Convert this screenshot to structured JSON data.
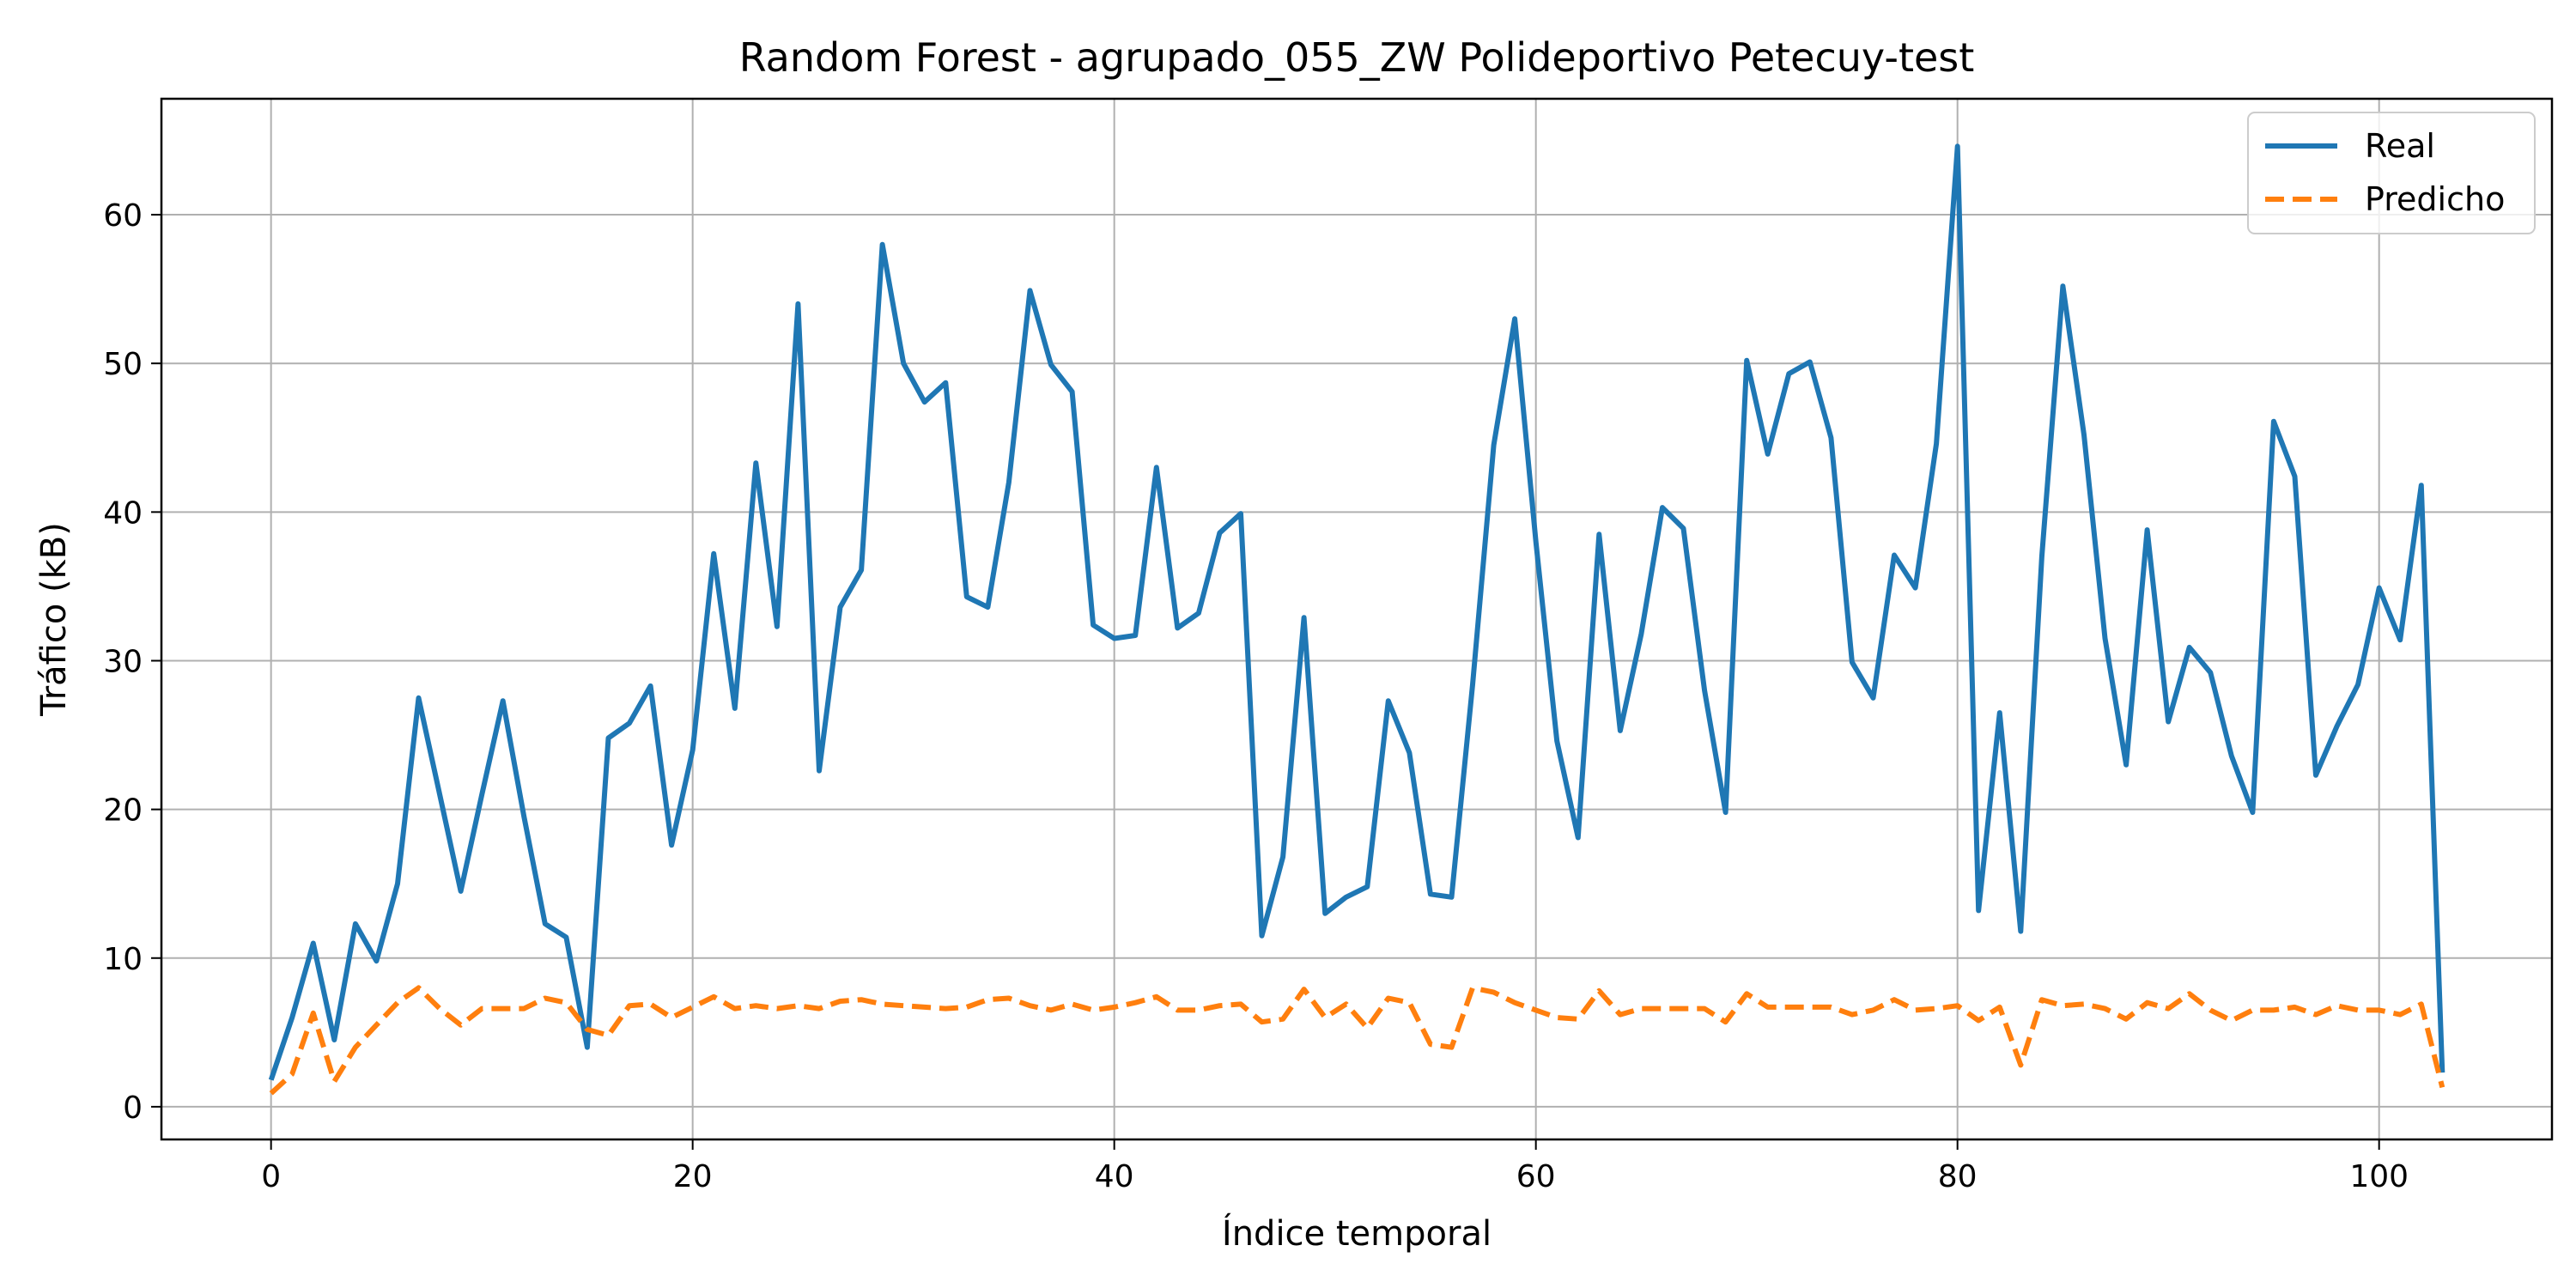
{
  "chart_data": {
    "type": "line",
    "title": "Random Forest - agrupado_055_ZW Polideportivo Petecuy-test",
    "xlabel": "Índice temporal",
    "ylabel": "Tráfico (kB)",
    "xlim": [
      -5.2,
      108.2
    ],
    "ylim": [
      -2.2,
      67.8
    ],
    "xticks": [
      0,
      20,
      40,
      60,
      80,
      100
    ],
    "yticks": [
      0,
      10,
      20,
      30,
      40,
      50,
      60
    ],
    "grid": true,
    "legend_position": "top-right",
    "colors": {
      "real": "#1f77b4",
      "predicho": "#ff7f0e",
      "grid": "#b0b0b0"
    },
    "x": [
      0,
      1,
      2,
      3,
      4,
      5,
      6,
      7,
      8,
      9,
      10,
      11,
      12,
      13,
      14,
      15,
      16,
      17,
      18,
      19,
      20,
      21,
      22,
      23,
      24,
      25,
      26,
      27,
      28,
      29,
      30,
      31,
      32,
      33,
      34,
      35,
      36,
      37,
      38,
      39,
      40,
      41,
      42,
      43,
      44,
      45,
      46,
      47,
      48,
      49,
      50,
      51,
      52,
      53,
      54,
      55,
      56,
      57,
      58,
      59,
      60,
      61,
      62,
      63,
      64,
      65,
      66,
      67,
      68,
      69,
      70,
      71,
      72,
      73,
      74,
      75,
      76,
      77,
      78,
      79,
      80,
      81,
      82,
      83,
      84,
      85,
      86,
      87,
      88,
      89,
      90,
      91,
      92,
      93,
      94,
      95,
      96,
      97,
      98,
      99,
      100,
      101,
      102,
      103
    ],
    "series": [
      {
        "name": "Real",
        "style": "solid",
        "values": [
          1.8,
          6.0,
          11.0,
          4.5,
          12.3,
          9.8,
          15.0,
          27.5,
          21.0,
          14.5,
          21.0,
          27.3,
          19.5,
          12.3,
          11.4,
          4.0,
          24.8,
          25.8,
          28.3,
          17.6,
          24.0,
          37.2,
          26.8,
          43.3,
          32.3,
          54.0,
          22.6,
          33.6,
          36.1,
          58.0,
          50.0,
          47.4,
          48.7,
          34.3,
          33.6,
          42.0,
          54.9,
          49.9,
          48.1,
          32.4,
          31.5,
          31.7,
          43.0,
          32.2,
          33.2,
          38.6,
          39.9,
          11.5,
          16.8,
          32.9,
          13.0,
          14.1,
          14.8,
          27.3,
          23.8,
          14.3,
          14.1,
          28.4,
          44.5,
          53.0,
          38.0,
          24.6,
          18.1,
          38.5,
          25.3,
          31.8,
          40.3,
          38.9,
          28.0,
          19.8,
          50.2,
          43.9,
          49.3,
          50.1,
          45.0,
          29.9,
          27.5,
          37.1,
          34.9,
          44.6,
          64.6,
          13.2,
          26.5,
          11.8,
          37.0,
          55.2,
          45.2,
          31.5,
          23.0,
          38.8,
          25.9,
          30.9,
          29.2,
          23.6,
          19.8,
          46.1,
          42.4,
          22.3,
          25.6,
          28.4,
          34.9,
          31.4,
          41.8,
          2.3
        ]
      },
      {
        "name": "Predicho",
        "style": "dashed",
        "values": [
          0.9,
          2.2,
          6.3,
          1.7,
          4.0,
          5.5,
          7.0,
          8.0,
          6.6,
          5.5,
          6.6,
          6.6,
          6.6,
          7.3,
          7.0,
          5.2,
          4.8,
          6.8,
          6.9,
          6.0,
          6.7,
          7.4,
          6.6,
          6.8,
          6.6,
          6.8,
          6.6,
          7.1,
          7.2,
          6.9,
          6.8,
          6.7,
          6.6,
          6.7,
          7.2,
          7.3,
          6.8,
          6.5,
          6.9,
          6.5,
          6.7,
          7.0,
          7.4,
          6.5,
          6.5,
          6.8,
          6.9,
          5.7,
          5.9,
          7.9,
          6.0,
          6.9,
          5.3,
          7.3,
          7.0,
          4.2,
          4.0,
          8.0,
          7.7,
          7.0,
          6.5,
          6.0,
          5.9,
          7.8,
          6.2,
          6.6,
          6.6,
          6.6,
          6.6,
          5.7,
          7.6,
          6.7,
          6.7,
          6.7,
          6.7,
          6.2,
          6.5,
          7.2,
          6.5,
          6.6,
          6.8,
          5.8,
          6.7,
          2.8,
          7.2,
          6.8,
          6.9,
          6.6,
          5.9,
          7.0,
          6.6,
          7.6,
          6.5,
          5.8,
          6.5,
          6.5,
          6.7,
          6.2,
          6.8,
          6.5,
          6.5,
          6.2,
          6.9,
          1.3
        ]
      }
    ]
  }
}
